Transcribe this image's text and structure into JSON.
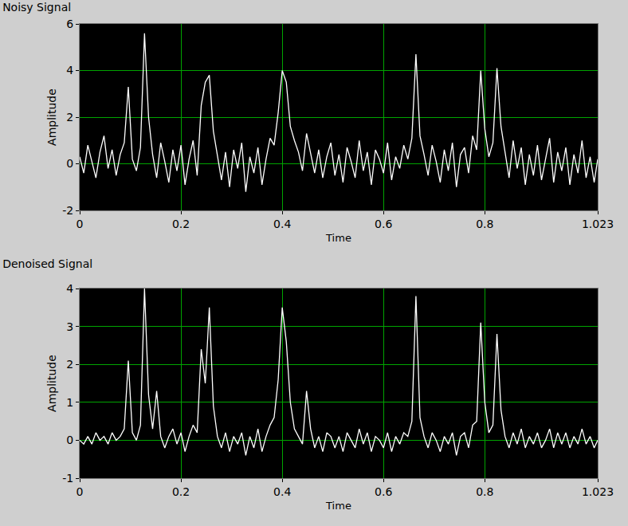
{
  "chart_data": [
    {
      "type": "line",
      "title": "Noisy Signal",
      "x_label": "Time",
      "y_label": "Amplitude",
      "color": "#ffffff",
      "grid": true,
      "xlim": [
        0,
        1.023
      ],
      "xticks": [
        0,
        0.2,
        0.4,
        0.6,
        0.8,
        1.023
      ],
      "ylim": [
        -2,
        6
      ],
      "yticks": [
        -2,
        0,
        2,
        4,
        6
      ],
      "x": [
        0,
        0.008,
        0.016,
        0.024,
        0.032,
        0.04,
        0.048,
        0.056,
        0.064,
        0.072,
        0.08,
        0.088,
        0.096,
        0.104,
        0.112,
        0.12,
        0.128,
        0.136,
        0.144,
        0.152,
        0.16,
        0.168,
        0.176,
        0.184,
        0.192,
        0.2,
        0.208,
        0.216,
        0.224,
        0.232,
        0.24,
        0.248,
        0.256,
        0.264,
        0.272,
        0.28,
        0.288,
        0.296,
        0.304,
        0.312,
        0.32,
        0.328,
        0.336,
        0.344,
        0.352,
        0.36,
        0.368,
        0.376,
        0.384,
        0.392,
        0.4,
        0.408,
        0.416,
        0.424,
        0.432,
        0.44,
        0.448,
        0.456,
        0.464,
        0.472,
        0.48,
        0.488,
        0.496,
        0.504,
        0.512,
        0.52,
        0.528,
        0.536,
        0.544,
        0.552,
        0.56,
        0.568,
        0.576,
        0.584,
        0.592,
        0.6,
        0.608,
        0.616,
        0.624,
        0.632,
        0.64,
        0.648,
        0.656,
        0.664,
        0.672,
        0.68,
        0.688,
        0.696,
        0.704,
        0.712,
        0.72,
        0.728,
        0.736,
        0.744,
        0.752,
        0.76,
        0.768,
        0.776,
        0.784,
        0.792,
        0.8,
        0.808,
        0.816,
        0.824,
        0.832,
        0.84,
        0.848,
        0.856,
        0.864,
        0.872,
        0.88,
        0.888,
        0.896,
        0.904,
        0.912,
        0.92,
        0.928,
        0.936,
        0.944,
        0.952,
        0.96,
        0.968,
        0.976,
        0.984,
        0.992,
        1.0,
        1.008,
        1.016,
        1.023
      ],
      "values": [
        0.3,
        -0.4,
        0.8,
        0.1,
        -0.6,
        0.5,
        1.2,
        -0.2,
        0.6,
        -0.5,
        0.4,
        0.9,
        3.3,
        0.2,
        -0.3,
        0.7,
        5.6,
        2.0,
        0.4,
        -0.6,
        0.9,
        0.1,
        -0.8,
        0.6,
        -0.3,
        0.8,
        -0.9,
        0.2,
        1.0,
        -0.5,
        2.5,
        3.5,
        3.8,
        1.4,
        0.3,
        -0.7,
        0.5,
        -1.0,
        0.6,
        -0.2,
        0.9,
        -1.2,
        0.3,
        -0.4,
        0.7,
        -0.9,
        0.2,
        1.1,
        0.8,
        2.2,
        4.0,
        3.5,
        1.6,
        1.0,
        0.5,
        -0.3,
        1.3,
        0.4,
        -0.4,
        0.6,
        -0.6,
        0.3,
        0.9,
        -0.5,
        0.4,
        -0.8,
        0.7,
        0.1,
        -0.6,
        1.0,
        -0.3,
        0.5,
        -0.9,
        0.6,
        0.2,
        -0.4,
        0.9,
        -0.7,
        0.3,
        -0.2,
        0.8,
        0.2,
        1.1,
        4.7,
        1.2,
        0.4,
        -0.5,
        0.8,
        0.1,
        -0.8,
        0.6,
        -0.3,
        0.9,
        -1.0,
        0.4,
        0.7,
        -0.4,
        1.2,
        0.6,
        4.0,
        1.5,
        0.3,
        0.9,
        4.1,
        1.6,
        0.5,
        -0.6,
        1.0,
        -0.2,
        0.7,
        -0.9,
        0.4,
        -0.5,
        0.8,
        -0.7,
        0.2,
        1.1,
        -0.8,
        0.5,
        -0.3,
        0.7,
        -0.9,
        0.4,
        -0.4,
        1.0,
        -0.6,
        0.3,
        -0.8,
        0.2
      ]
    },
    {
      "type": "line",
      "title": "Denoised Signal",
      "x_label": "Time",
      "y_label": "Amplitude",
      "color": "#ffffff",
      "grid": true,
      "xlim": [
        0,
        1.023
      ],
      "xticks": [
        0,
        0.2,
        0.4,
        0.6,
        0.8,
        1.023
      ],
      "ylim": [
        -1,
        4
      ],
      "yticks": [
        -1,
        0,
        1,
        2,
        3,
        4
      ],
      "x": [
        0,
        0.008,
        0.016,
        0.024,
        0.032,
        0.04,
        0.048,
        0.056,
        0.064,
        0.072,
        0.08,
        0.088,
        0.096,
        0.104,
        0.112,
        0.12,
        0.128,
        0.136,
        0.144,
        0.152,
        0.16,
        0.168,
        0.176,
        0.184,
        0.192,
        0.2,
        0.208,
        0.216,
        0.224,
        0.232,
        0.24,
        0.248,
        0.256,
        0.264,
        0.272,
        0.28,
        0.288,
        0.296,
        0.304,
        0.312,
        0.32,
        0.328,
        0.336,
        0.344,
        0.352,
        0.36,
        0.368,
        0.376,
        0.384,
        0.392,
        0.4,
        0.408,
        0.416,
        0.424,
        0.432,
        0.44,
        0.448,
        0.456,
        0.464,
        0.472,
        0.48,
        0.488,
        0.496,
        0.504,
        0.512,
        0.52,
        0.528,
        0.536,
        0.544,
        0.552,
        0.56,
        0.568,
        0.576,
        0.584,
        0.592,
        0.6,
        0.608,
        0.616,
        0.624,
        0.632,
        0.64,
        0.648,
        0.656,
        0.664,
        0.672,
        0.68,
        0.688,
        0.696,
        0.704,
        0.712,
        0.72,
        0.728,
        0.736,
        0.744,
        0.752,
        0.76,
        0.768,
        0.776,
        0.784,
        0.792,
        0.8,
        0.808,
        0.816,
        0.824,
        0.832,
        0.84,
        0.848,
        0.856,
        0.864,
        0.872,
        0.88,
        0.888,
        0.896,
        0.904,
        0.912,
        0.92,
        0.928,
        0.936,
        0.944,
        0.952,
        0.96,
        0.968,
        0.976,
        0.984,
        0.992,
        1.0,
        1.008,
        1.016,
        1.023
      ],
      "values": [
        0.0,
        -0.1,
        0.1,
        -0.1,
        0.2,
        0.0,
        0.1,
        -0.1,
        0.2,
        0.0,
        0.1,
        0.3,
        2.1,
        0.2,
        0.0,
        0.4,
        4.0,
        1.2,
        0.3,
        1.3,
        0.1,
        -0.2,
        0.1,
        0.3,
        -0.1,
        0.2,
        -0.3,
        0.1,
        0.4,
        0.2,
        2.4,
        1.5,
        3.5,
        0.9,
        0.1,
        -0.2,
        0.2,
        -0.3,
        0.1,
        -0.1,
        0.2,
        -0.4,
        0.1,
        -0.2,
        0.3,
        -0.3,
        0.1,
        0.4,
        0.6,
        1.6,
        3.5,
        2.6,
        1.0,
        0.3,
        0.1,
        -0.1,
        1.3,
        0.3,
        -0.2,
        0.1,
        -0.3,
        0.2,
        0.1,
        -0.2,
        0.1,
        -0.3,
        0.2,
        0.0,
        -0.2,
        0.3,
        -0.1,
        0.2,
        -0.3,
        0.1,
        0.0,
        -0.2,
        0.2,
        -0.3,
        0.1,
        -0.1,
        0.2,
        0.1,
        0.5,
        3.8,
        0.6,
        0.1,
        -0.2,
        0.2,
        0.0,
        -0.3,
        0.1,
        -0.1,
        0.2,
        -0.4,
        0.1,
        0.2,
        -0.2,
        0.4,
        0.5,
        3.1,
        1.0,
        0.2,
        0.4,
        2.8,
        0.8,
        0.1,
        -0.2,
        0.2,
        -0.1,
        0.3,
        -0.2,
        0.1,
        -0.1,
        0.2,
        -0.2,
        0.0,
        0.3,
        -0.2,
        0.2,
        -0.1,
        0.2,
        -0.2,
        0.1,
        -0.1,
        0.3,
        -0.1,
        0.1,
        -0.2,
        0.0
      ]
    }
  ]
}
